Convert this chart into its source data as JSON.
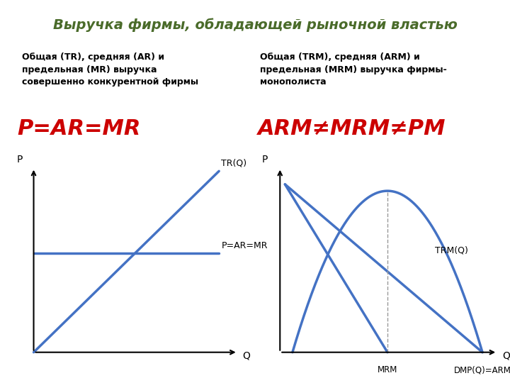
{
  "title": "Выручка фирмы, обладающей рыночной властью",
  "title_bg": "#dde8c8",
  "bg_color": "#ffffff",
  "left_subtitle": "Общая (TR), средняя (AR) и\nпредельная (MR) выручка\nсовершенно конкурентной фирмы",
  "left_formula": "P=AR=MR",
  "right_subtitle": "Общая (TRМ), средняя (ARМ) и\nпредельная (MRМ) выручка фирмы-\nмонополиста",
  "right_formula": "ARМ≠MRМ≠PМ",
  "line_color": "#4472c4",
  "formula_color": "#cc0000",
  "title_text_color": "#4a6b2a",
  "axis_color": "#000000",
  "subtitle_fontsize": 9,
  "formula_fontsize": 22,
  "title_fontsize": 14
}
